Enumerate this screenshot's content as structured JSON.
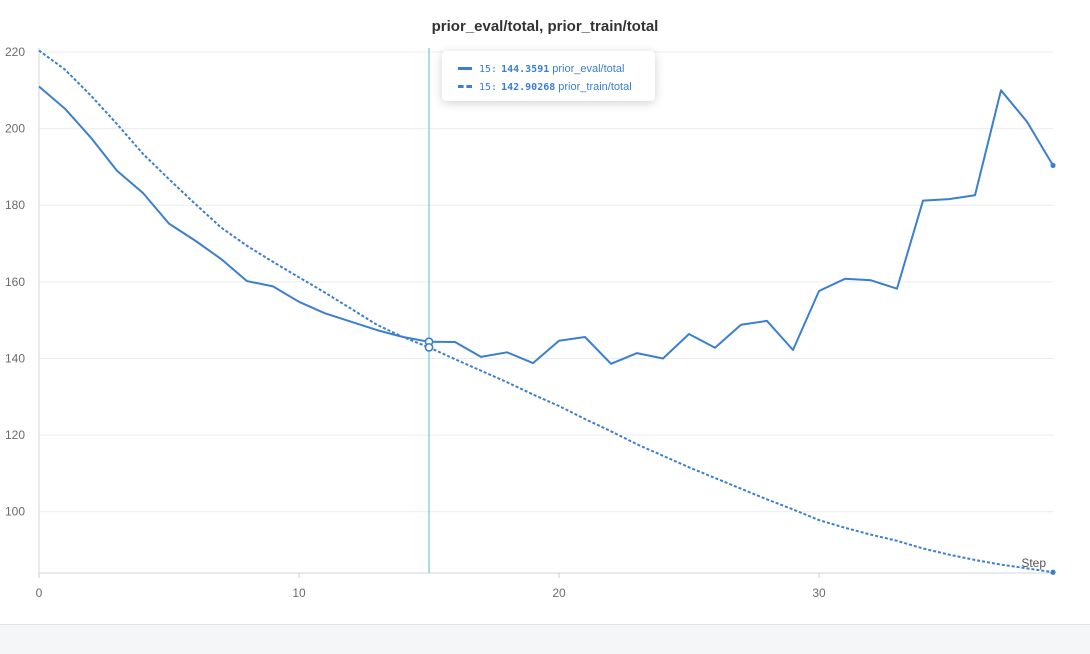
{
  "chart_data": {
    "type": "line",
    "title": "prior_eval/total, prior_train/total",
    "xlabel": "Step",
    "ylabel": "",
    "xlim": [
      0,
      39
    ],
    "ylim": [
      84,
      220
    ],
    "x_ticks": [
      0,
      10,
      20,
      30
    ],
    "y_ticks": [
      100,
      120,
      140,
      160,
      180,
      200,
      220
    ],
    "grid": true,
    "legend": "tooltip",
    "color": "#3b7fd0",
    "hover": {
      "step": 15,
      "rows": [
        {
          "step": "15",
          "value": "144.3591",
          "name": "prior_eval/total",
          "style": "solid"
        },
        {
          "step": "15",
          "value": "142.90268",
          "name": "prior_train/total",
          "style": "dashed"
        }
      ]
    },
    "series": [
      {
        "name": "prior_eval/total",
        "style": "solid",
        "x": [
          0,
          1,
          2,
          3,
          4,
          5,
          6,
          7,
          8,
          9,
          10,
          11,
          12,
          13,
          14,
          15,
          16,
          17,
          18,
          19,
          20,
          21,
          22,
          23,
          24,
          25,
          26,
          27,
          28,
          29,
          30,
          31,
          32,
          33,
          34,
          35,
          36,
          37,
          38,
          39
        ],
        "values": [
          211,
          205.2,
          197.6,
          189,
          183.2,
          175.2,
          170.8,
          166,
          160.2,
          158.8,
          154.8,
          151.8,
          149.6,
          147.4,
          145.6,
          144.3591,
          144.3,
          140.4,
          141.6,
          138.8,
          144.6,
          145.6,
          138.6,
          141.4,
          140,
          146.4,
          142.8,
          148.8,
          149.8,
          142.2,
          157.6,
          160.8,
          160.4,
          158.2,
          181.2,
          181.6,
          182.6,
          210,
          201.8,
          190.4
        ]
      },
      {
        "name": "prior_train/total",
        "style": "dashed",
        "x": [
          0,
          1,
          2,
          3,
          4,
          5,
          6,
          7,
          8,
          9,
          10,
          11,
          12,
          13,
          14,
          15,
          16,
          17,
          18,
          19,
          20,
          21,
          22,
          23,
          24,
          25,
          26,
          27,
          28,
          29,
          30,
          31,
          32,
          33,
          34,
          35,
          36,
          37,
          38,
          39
        ],
        "values": [
          220.4,
          215.4,
          208.6,
          201.2,
          193.4,
          186.8,
          180.4,
          174.2,
          169.4,
          165.2,
          161.2,
          157.2,
          153,
          148.8,
          145.6,
          142.90268,
          139.8,
          136.8,
          133.8,
          130.6,
          127.6,
          124.2,
          121,
          117.6,
          114.6,
          111.6,
          108.8,
          106,
          103.2,
          100.6,
          97.8,
          95.8,
          94,
          92.4,
          90.4,
          88.8,
          87.4,
          86.2,
          85.2,
          84.2
        ]
      }
    ]
  }
}
